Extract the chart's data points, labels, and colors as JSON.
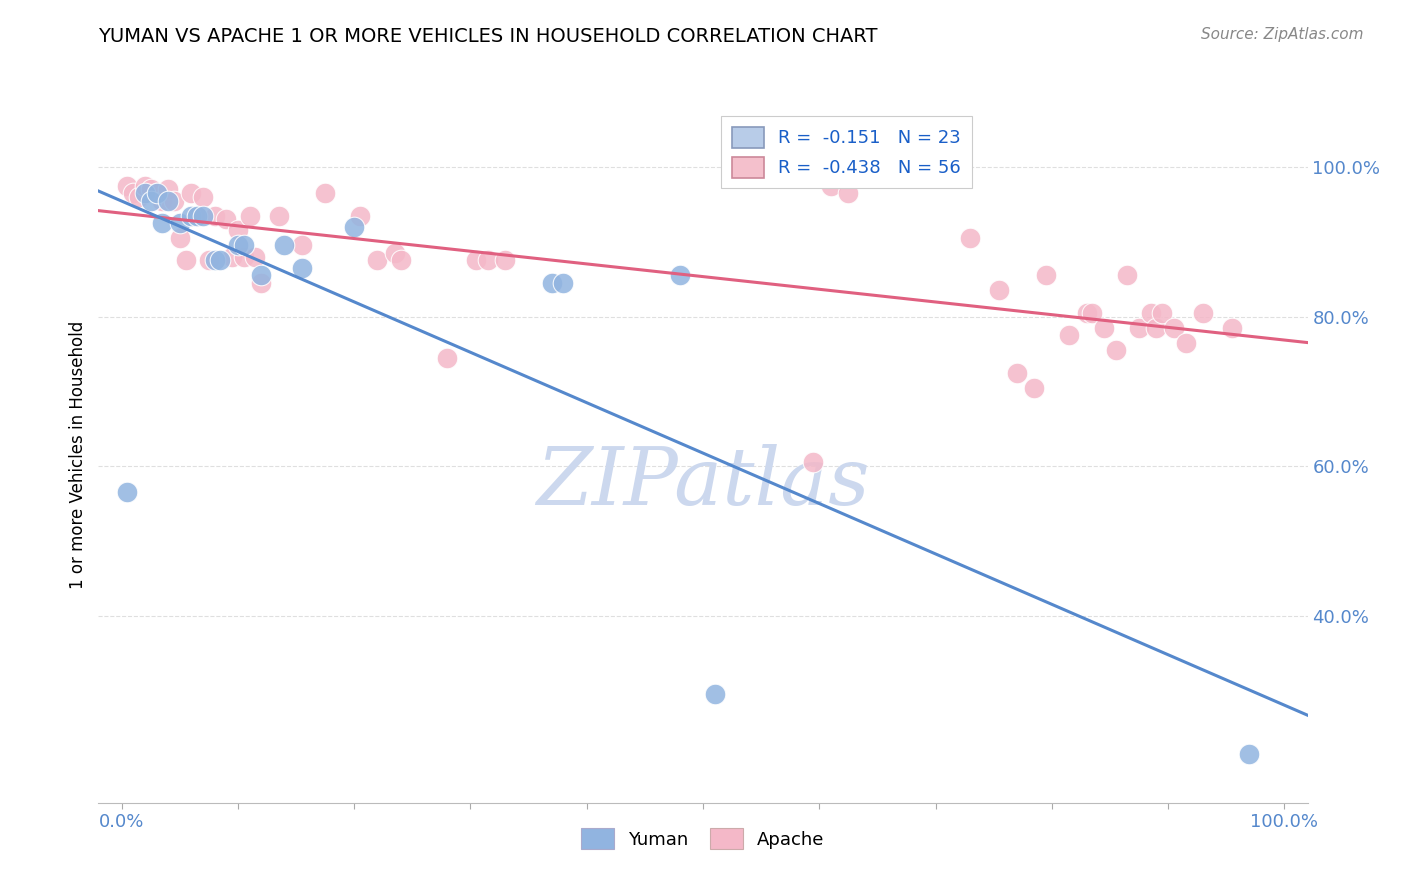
{
  "title": "YUMAN VS APACHE 1 OR MORE VEHICLES IN HOUSEHOLD CORRELATION CHART",
  "source_text": "Source: ZipAtlas.com",
  "ylabel": "1 or more Vehicles in Household",
  "xlim": [
    -0.02,
    1.02
  ],
  "ylim": [
    0.15,
    1.08
  ],
  "x_tick_positions": [
    0.0,
    0.1,
    0.2,
    0.3,
    0.4,
    0.5,
    0.6,
    0.7,
    0.8,
    0.9,
    1.0
  ],
  "x_tick_labels": [
    "0.0%",
    "",
    "",
    "",
    "",
    "",
    "",
    "",
    "",
    "",
    "100.0%"
  ],
  "y_ticks": [
    0.4,
    0.6,
    0.8,
    1.0
  ],
  "y_tick_labels": [
    "40.0%",
    "60.0%",
    "80.0%",
    "100.0%"
  ],
  "R_yuman": -0.151,
  "N_yuman": 23,
  "R_apache": -0.438,
  "N_apache": 56,
  "yuman_color": "#91b4e0",
  "apache_color": "#f4b8c8",
  "yuman_line_color": "#5588cc",
  "apache_line_color": "#e06080",
  "legend_patch_yuman": "#b8cce8",
  "legend_patch_apache": "#f4c0cc",
  "legend_edge_yuman": "#8899bb",
  "legend_edge_apache": "#cc8899",
  "watermark_color": "#ccd8ee",
  "watermark_text": "ZIPatlas",
  "tick_color": "#5588cc",
  "grid_color": "#d8d8d8",
  "yuman_x": [
    0.005,
    0.02,
    0.025,
    0.03,
    0.035,
    0.04,
    0.05,
    0.06,
    0.065,
    0.07,
    0.08,
    0.085,
    0.1,
    0.105,
    0.12,
    0.14,
    0.155,
    0.2,
    0.37,
    0.38,
    0.48,
    0.51,
    0.97
  ],
  "yuman_y": [
    0.565,
    0.965,
    0.955,
    0.965,
    0.925,
    0.955,
    0.925,
    0.935,
    0.935,
    0.935,
    0.875,
    0.875,
    0.895,
    0.895,
    0.855,
    0.895,
    0.865,
    0.92,
    0.845,
    0.845,
    0.855,
    0.295,
    0.215
  ],
  "apache_x": [
    0.005,
    0.01,
    0.015,
    0.02,
    0.025,
    0.03,
    0.035,
    0.04,
    0.045,
    0.05,
    0.055,
    0.06,
    0.065,
    0.07,
    0.075,
    0.08,
    0.09,
    0.095,
    0.1,
    0.105,
    0.11,
    0.115,
    0.12,
    0.135,
    0.155,
    0.175,
    0.205,
    0.22,
    0.235,
    0.24,
    0.28,
    0.305,
    0.315,
    0.33,
    0.595,
    0.61,
    0.625,
    0.73,
    0.755,
    0.77,
    0.785,
    0.795,
    0.815,
    0.83,
    0.835,
    0.845,
    0.855,
    0.865,
    0.875,
    0.885,
    0.89,
    0.895,
    0.905,
    0.915,
    0.93,
    0.955
  ],
  "apache_y": [
    0.975,
    0.965,
    0.96,
    0.975,
    0.97,
    0.965,
    0.955,
    0.97,
    0.955,
    0.905,
    0.875,
    0.965,
    0.935,
    0.96,
    0.875,
    0.935,
    0.93,
    0.88,
    0.915,
    0.88,
    0.935,
    0.88,
    0.845,
    0.935,
    0.895,
    0.965,
    0.935,
    0.875,
    0.885,
    0.875,
    0.745,
    0.875,
    0.875,
    0.875,
    0.605,
    0.975,
    0.965,
    0.905,
    0.835,
    0.725,
    0.705,
    0.855,
    0.775,
    0.805,
    0.805,
    0.785,
    0.755,
    0.855,
    0.785,
    0.805,
    0.785,
    0.805,
    0.785,
    0.765,
    0.805,
    0.785
  ]
}
